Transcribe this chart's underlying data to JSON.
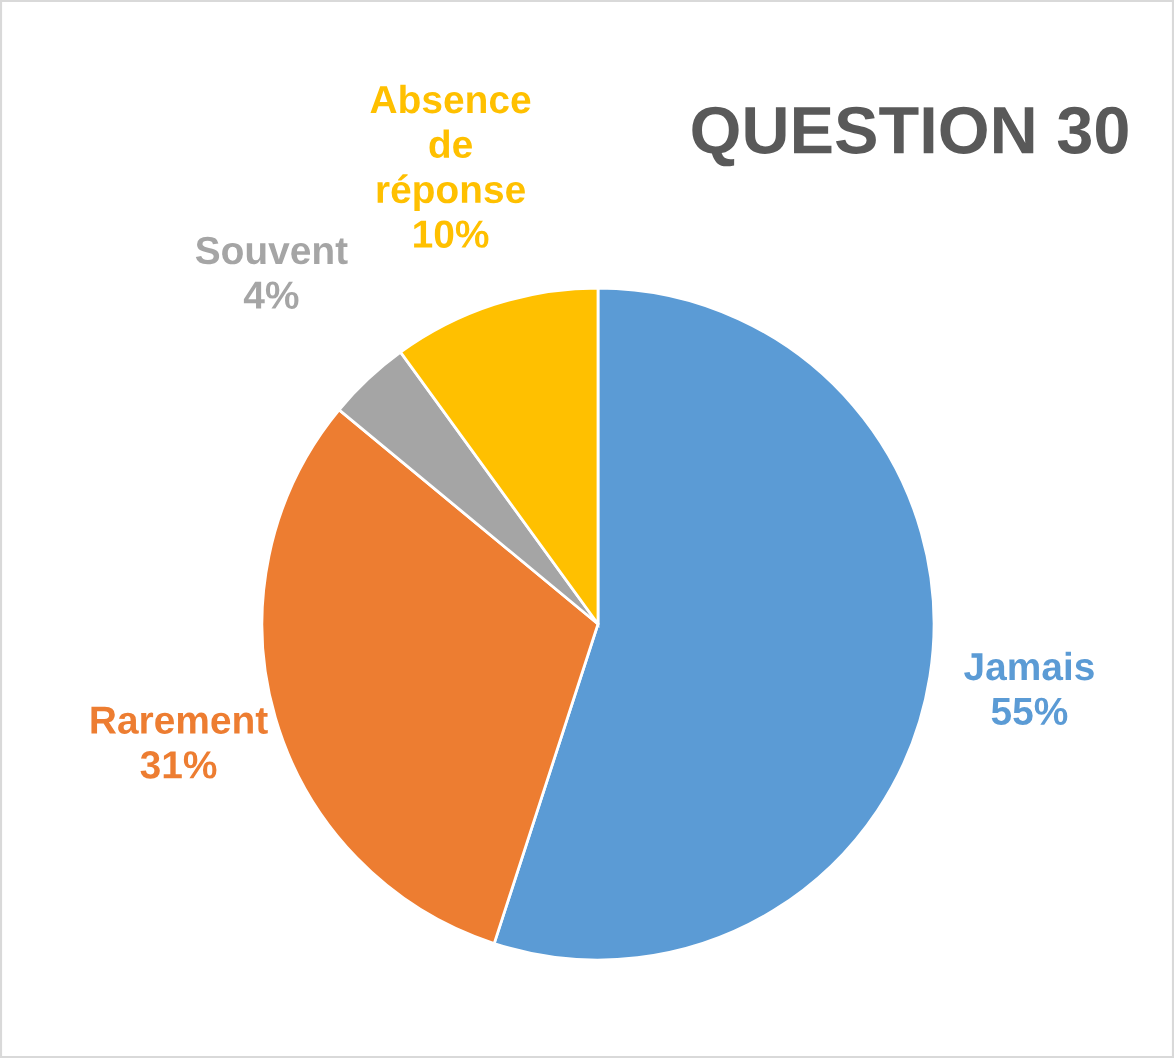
{
  "chart_data": {
    "type": "pie",
    "title": "QUESTION 30",
    "categories": [
      "Jamais",
      "Rarement",
      "Souvent",
      "Absence de réponse"
    ],
    "values": [
      55,
      31,
      4,
      10
    ],
    "colors": [
      "#5b9bd5",
      "#ed7d31",
      "#a5a5a5",
      "#ffc000"
    ],
    "value_labels": [
      "55%",
      "31%",
      "4%",
      "10%"
    ],
    "legend": false
  }
}
